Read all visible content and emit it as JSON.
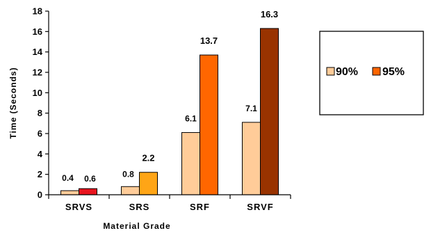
{
  "chart_data": {
    "type": "bar",
    "title": "",
    "xlabel": "Material Grade",
    "ylabel": "Time (Seconds)",
    "ylim": [
      0,
      18
    ],
    "yticks": [
      0,
      2,
      4,
      6,
      8,
      10,
      12,
      14,
      16,
      18
    ],
    "grid": false,
    "legend_position": "right",
    "categories": [
      "SRVS",
      "SRS",
      "SRF",
      "SRVF"
    ],
    "series": [
      {
        "name": "90%",
        "values": [
          0.4,
          0.8,
          6.1,
          7.1
        ],
        "labels": [
          "0.4",
          "0.8",
          "6.1",
          "7.1"
        ],
        "color": "#FFCC99",
        "legend_color": "#FFCC99"
      },
      {
        "name": "95%",
        "values": [
          0.6,
          2.2,
          13.7,
          16.3
        ],
        "labels": [
          "0.6",
          "2.2",
          "13.7",
          "16.3"
        ],
        "colors": [
          "#E8141E",
          "#FFA516",
          "#FF6600",
          "#993300"
        ],
        "legend_color": "#FF6600"
      }
    ]
  }
}
